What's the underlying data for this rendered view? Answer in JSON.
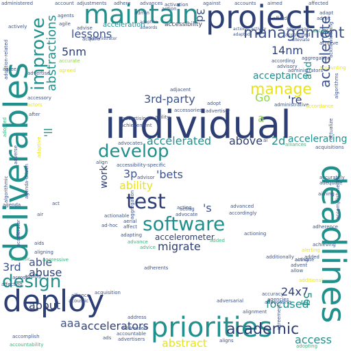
{
  "palette": {
    "background": "#ffffff",
    "dark": "#3b528b",
    "navy": "#2c3e73",
    "teal": "#21908c",
    "green": "#35b779",
    "lime": "#8fd744",
    "yellow": "#e8e419",
    "purple": "#440154",
    "violet": "#472d7b"
  },
  "words": [
    "individual",
    "deliverables",
    "deadlines",
    "project",
    "deploy",
    "priorities",
    "maintain",
    "test",
    "software",
    "develop",
    "design",
    "improve",
    "manage",
    "management",
    "accelerate",
    "abstractions",
    "lessons",
    "accelerated",
    "above",
    "2d",
    "3rd-party",
    "3p",
    "ability",
    "'bets",
    "migrate",
    "'s",
    "academic",
    "accelerators",
    "abstract",
    "aaa",
    "24x7",
    "5g",
    "access",
    "focused",
    "able",
    "abuse",
    "3rd",
    "about",
    "5nm",
    "14nm",
    "acceptance",
    "'re",
    "Go",
    "accelerometer",
    "accelerating",
    "'ll",
    "work",
    "and",
    "a",
    "3d",
    "accessibility",
    "acceleration",
    "action",
    "administered",
    "adhere",
    "advances",
    "activation",
    "against",
    "accounts",
    "affected",
    "adjustments",
    "account",
    "agents",
    "agile",
    "actively",
    "administrator",
    "accurate",
    "accuracy",
    "activity",
    "actions",
    "adopted",
    "adapted",
    "advertise",
    "advantage",
    "alleviate",
    "accept",
    "adjacent",
    "adopt",
    "adoption",
    "adwords",
    "administrative",
    "accessories",
    "advertiser",
    "advertising",
    "achievement",
    "advocates",
    "accessibility-specific",
    "advisor",
    "advanced",
    "accordingly",
    "advocate",
    "acting",
    "actionable",
    "ad-hoc",
    "aerial",
    "affect",
    "adapting",
    "advance",
    "advice",
    "added",
    "accelerator",
    "aids",
    "aligning",
    "aggressive",
    "aesthetic",
    "affecting",
    "accomplish",
    "accountability",
    "acquisition",
    "alliance",
    "acoustic",
    "address",
    "addressed",
    "accountable",
    "advertisers",
    "ads",
    "aligns",
    "adversarial",
    "agreement",
    "advocating",
    "adopting",
    "additional",
    "additionally",
    "alerting",
    "achieving",
    "adherence",
    "accurately",
    "adequate",
    "alliances",
    "acquisitions",
    "actualize",
    "algorithms",
    "aiming",
    "added",
    "airing",
    "agenda",
    "agree",
    "algorithmic",
    "adoption-related",
    "adding",
    "agencies",
    "alignment",
    "advent",
    "allow",
    "accomplishments",
    "achieve",
    "acquire",
    "advise",
    "adroit",
    "acknowledging",
    "across",
    "adherents",
    "ai",
    "activate",
    "acting",
    "accounted",
    "according",
    "advisory",
    "afford",
    "aggregation",
    "align",
    "agility",
    "admin",
    "administrators",
    "aimed",
    "adapt",
    "adaptive",
    "aggregating",
    "accordance",
    "agreed",
    "actors",
    "after",
    "adverse",
    "act",
    "accessory",
    "agenda-driven",
    "air",
    "actioning",
    "accounting"
  ]
}
